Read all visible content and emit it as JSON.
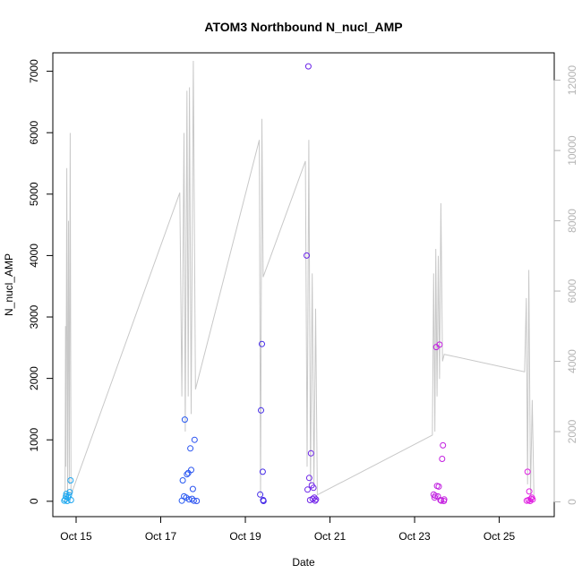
{
  "chart_data": {
    "type": "scatter",
    "title": "ATOM3 Northbound N_nucl_AMP",
    "xlabel": "Date",
    "ylabel": "N_nucl_AMP",
    "x_ticks": [
      "Oct 15",
      "Oct 17",
      "Oct 19",
      "Oct 21",
      "Oct 23",
      "Oct 25"
    ],
    "x_tick_days": [
      15,
      17,
      19,
      21,
      23,
      25
    ],
    "xlim_days": [
      14.45,
      26.3
    ],
    "y_ticks": [
      0,
      1000,
      2000,
      3000,
      4000,
      5000,
      6000,
      7000
    ],
    "ylim": [
      -250,
      7300
    ],
    "y2_ticks": [
      0,
      2000,
      4000,
      6000,
      8000,
      10000,
      12000
    ],
    "y2lim": [
      -420,
      12780
    ],
    "colors": {
      "line": "#c8c8c8",
      "right_axis": "#b4b4b4",
      "point_gradient": [
        "#1eaaf0",
        "#1f6af5",
        "#3b2be8",
        "#8a1ee8",
        "#c21ee0",
        "#e01ee0"
      ]
    },
    "points": [
      {
        "x": 14.72,
        "y": 10
      },
      {
        "x": 14.74,
        "y": 30
      },
      {
        "x": 14.76,
        "y": 80
      },
      {
        "x": 14.77,
        "y": 120
      },
      {
        "x": 14.79,
        "y": 5
      },
      {
        "x": 14.81,
        "y": 60
      },
      {
        "x": 14.83,
        "y": 100
      },
      {
        "x": 14.85,
        "y": 150
      },
      {
        "x": 14.87,
        "y": 340
      },
      {
        "x": 14.88,
        "y": 20
      },
      {
        "x": 17.5,
        "y": 10
      },
      {
        "x": 17.52,
        "y": 340
      },
      {
        "x": 17.55,
        "y": 80
      },
      {
        "x": 17.57,
        "y": 1330
      },
      {
        "x": 17.6,
        "y": 60
      },
      {
        "x": 17.62,
        "y": 440
      },
      {
        "x": 17.65,
        "y": 460
      },
      {
        "x": 17.67,
        "y": 30
      },
      {
        "x": 17.7,
        "y": 860
      },
      {
        "x": 17.72,
        "y": 510
      },
      {
        "x": 17.74,
        "y": 40
      },
      {
        "x": 17.76,
        "y": 200
      },
      {
        "x": 17.78,
        "y": 10
      },
      {
        "x": 17.8,
        "y": 1000
      },
      {
        "x": 17.85,
        "y": 5
      },
      {
        "x": 19.35,
        "y": 110
      },
      {
        "x": 19.37,
        "y": 1480
      },
      {
        "x": 19.39,
        "y": 2560
      },
      {
        "x": 19.41,
        "y": 480
      },
      {
        "x": 19.42,
        "y": 20
      },
      {
        "x": 19.43,
        "y": 5
      },
      {
        "x": 20.45,
        "y": 4000
      },
      {
        "x": 20.47,
        "y": 190
      },
      {
        "x": 20.49,
        "y": 7080
      },
      {
        "x": 20.51,
        "y": 380
      },
      {
        "x": 20.53,
        "y": 20
      },
      {
        "x": 20.55,
        "y": 780
      },
      {
        "x": 20.57,
        "y": 260
      },
      {
        "x": 20.59,
        "y": 40
      },
      {
        "x": 20.61,
        "y": 220
      },
      {
        "x": 20.63,
        "y": 60
      },
      {
        "x": 20.65,
        "y": 10
      },
      {
        "x": 20.67,
        "y": 30
      },
      {
        "x": 23.45,
        "y": 110
      },
      {
        "x": 23.47,
        "y": 60
      },
      {
        "x": 23.49,
        "y": 90
      },
      {
        "x": 23.51,
        "y": 2510
      },
      {
        "x": 23.53,
        "y": 250
      },
      {
        "x": 23.55,
        "y": 80
      },
      {
        "x": 23.57,
        "y": 240
      },
      {
        "x": 23.59,
        "y": 2550
      },
      {
        "x": 23.61,
        "y": 20
      },
      {
        "x": 23.63,
        "y": 10
      },
      {
        "x": 23.65,
        "y": 690
      },
      {
        "x": 23.67,
        "y": 910
      },
      {
        "x": 23.69,
        "y": 5
      },
      {
        "x": 23.7,
        "y": 30
      },
      {
        "x": 25.65,
        "y": 10
      },
      {
        "x": 25.67,
        "y": 480
      },
      {
        "x": 25.69,
        "y": 20
      },
      {
        "x": 25.71,
        "y": 160
      },
      {
        "x": 25.73,
        "y": 5
      },
      {
        "x": 25.75,
        "y": 40
      },
      {
        "x": 25.77,
        "y": 60
      },
      {
        "x": 25.79,
        "y": 30
      }
    ],
    "line_y2": [
      [
        14.74,
        0
      ],
      [
        14.75,
        5000
      ],
      [
        14.76,
        1000
      ],
      [
        14.78,
        9500
      ],
      [
        14.8,
        200
      ],
      [
        14.82,
        8000
      ],
      [
        14.84,
        500
      ],
      [
        14.86,
        10500
      ],
      [
        14.88,
        200
      ],
      [
        17.45,
        8800
      ],
      [
        17.5,
        3000
      ],
      [
        17.55,
        10500
      ],
      [
        17.58,
        2000
      ],
      [
        17.62,
        11700
      ],
      [
        17.65,
        3000
      ],
      [
        17.68,
        11800
      ],
      [
        17.72,
        2500
      ],
      [
        17.77,
        12550
      ],
      [
        17.82,
        3200
      ],
      [
        19.33,
        10300
      ],
      [
        19.36,
        200
      ],
      [
        19.39,
        10900
      ],
      [
        19.42,
        6400
      ],
      [
        20.42,
        9700
      ],
      [
        20.46,
        1000
      ],
      [
        20.5,
        10300
      ],
      [
        20.54,
        500
      ],
      [
        20.58,
        6500
      ],
      [
        20.62,
        500
      ],
      [
        20.66,
        5500
      ],
      [
        20.7,
        200
      ],
      [
        23.42,
        1900
      ],
      [
        23.45,
        6500
      ],
      [
        23.48,
        2000
      ],
      [
        23.5,
        7200
      ],
      [
        23.53,
        3000
      ],
      [
        23.56,
        7000
      ],
      [
        23.59,
        3500
      ],
      [
        23.62,
        8500
      ],
      [
        23.66,
        4000
      ],
      [
        23.7,
        4200
      ],
      [
        25.6,
        3700
      ],
      [
        25.64,
        5800
      ],
      [
        25.67,
        500
      ],
      [
        25.7,
        6600
      ],
      [
        25.74,
        200
      ],
      [
        25.78,
        2900
      ],
      [
        25.82,
        200
      ]
    ],
    "grid": false,
    "legend": "none"
  }
}
